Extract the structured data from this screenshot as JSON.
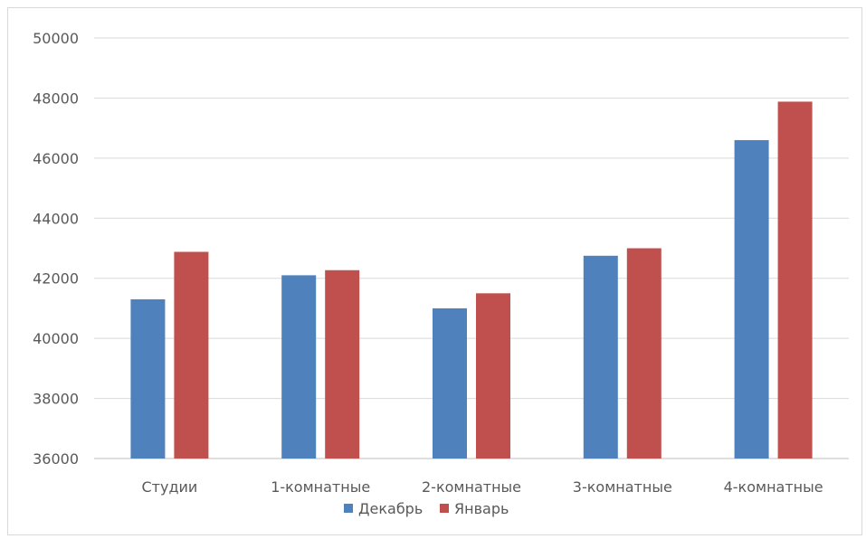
{
  "chart_data": {
    "type": "bar",
    "categories": [
      "Студии",
      "1-комнатные",
      "2-комнатные",
      "3-комнатные",
      "4-комнатные"
    ],
    "series": [
      {
        "name": "Декабрь",
        "color": "#4f81bd",
        "values": [
          41300,
          42100,
          41000,
          42750,
          46600
        ]
      },
      {
        "name": "Январь",
        "color": "#c0504d",
        "values": [
          42880,
          42270,
          41500,
          43000,
          47880
        ]
      }
    ],
    "yticks": [
      "36000",
      "38000",
      "40000",
      "42000",
      "44000",
      "46000",
      "48000",
      "50000"
    ],
    "ylim": [
      36000,
      50000
    ],
    "grid": true,
    "legend_position": "bottom"
  }
}
